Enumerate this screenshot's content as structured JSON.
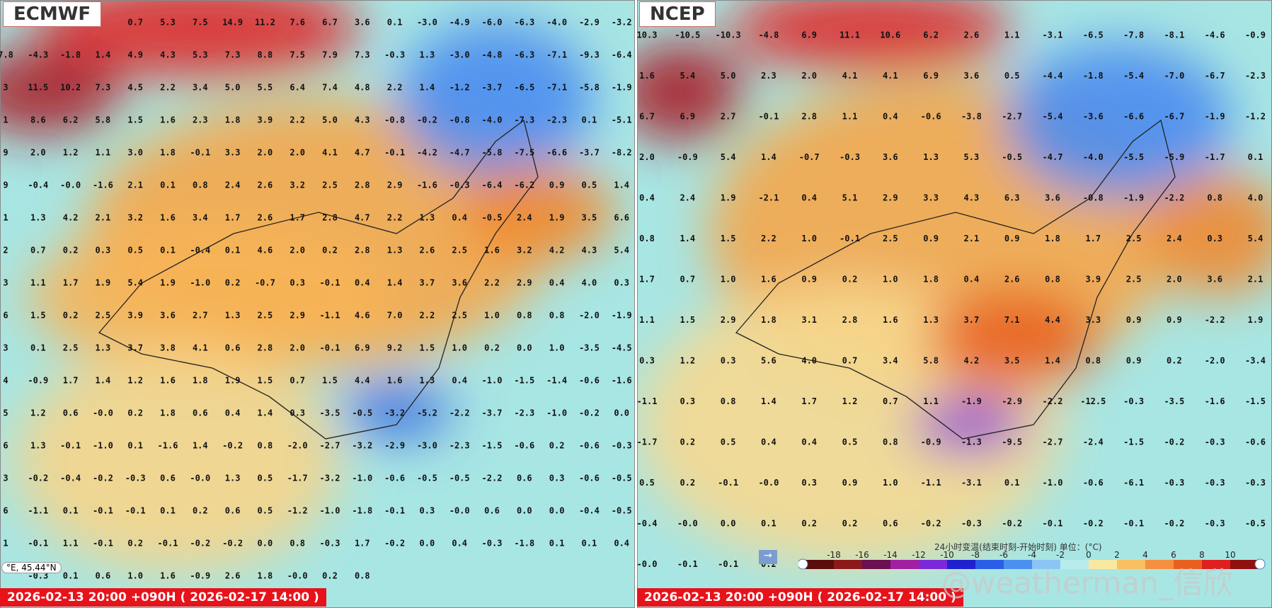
{
  "panels": [
    {
      "title": "ECMWF",
      "footer": "2026-02-13 20:00 +090H ( 2026-02-17 14:00 )",
      "grid": [
        [
          null,
          null,
          null,
          null,
          "0.7",
          "5.3",
          "7.5",
          "14.9",
          "11.2",
          "7.6",
          "6.7",
          "3.6",
          "0.1",
          "-3.0",
          "-4.9",
          "-6.0",
          "-6.3",
          "-4.0",
          "-2.9",
          "-3.2"
        ],
        [
          "7.8",
          "-4.3",
          "-1.8",
          "1.4",
          "4.9",
          "4.3",
          "5.3",
          "7.3",
          "8.8",
          "7.5",
          "7.9",
          "7.3",
          "-0.3",
          "1.3",
          "-3.0",
          "-4.8",
          "-6.3",
          "-7.1",
          "-9.3",
          "-6.4"
        ],
        [
          "3",
          "11.5",
          "10.2",
          "7.3",
          "4.5",
          "2.2",
          "3.4",
          "5.0",
          "5.5",
          "6.4",
          "7.4",
          "4.8",
          "2.2",
          "1.4",
          "-1.2",
          "-3.7",
          "-6.5",
          "-7.1",
          "-5.8",
          "-1.9"
        ],
        [
          "1",
          "8.6",
          "6.2",
          "5.8",
          "1.5",
          "1.6",
          "2.3",
          "1.8",
          "3.9",
          "2.2",
          "5.0",
          "4.3",
          "-0.8",
          "-0.2",
          "-0.8",
          "-4.0",
          "-7.3",
          "-2.3",
          "0.1",
          "-5.1"
        ],
        [
          "9",
          "2.0",
          "1.2",
          "1.1",
          "3.0",
          "1.8",
          "-0.1",
          "3.3",
          "2.0",
          "2.0",
          "4.1",
          "4.7",
          "-0.1",
          "-4.2",
          "-4.7",
          "-5.8",
          "-7.5",
          "-6.6",
          "-3.7",
          "-8.2"
        ],
        [
          "9",
          "-0.4",
          "-0.0",
          "-1.6",
          "2.1",
          "0.1",
          "0.8",
          "2.4",
          "2.6",
          "3.2",
          "2.5",
          "2.8",
          "2.9",
          "-1.6",
          "-0.3",
          "-6.4",
          "-6.2",
          "0.9",
          "0.5",
          "1.4"
        ],
        [
          "1",
          "1.3",
          "4.2",
          "2.1",
          "3.2",
          "1.6",
          "3.4",
          "1.7",
          "2.6",
          "1.7",
          "2.8",
          "4.7",
          "2.2",
          "1.3",
          "0.4",
          "-0.5",
          "2.4",
          "1.9",
          "3.5",
          "6.6"
        ],
        [
          "2",
          "0.7",
          "0.2",
          "0.3",
          "0.5",
          "0.1",
          "-0.4",
          "0.1",
          "4.6",
          "2.0",
          "0.2",
          "2.8",
          "1.3",
          "2.6",
          "2.5",
          "1.6",
          "3.2",
          "4.2",
          "4.3",
          "5.4"
        ],
        [
          "3",
          "1.1",
          "1.7",
          "1.9",
          "5.4",
          "1.9",
          "-1.0",
          "0.2",
          "-0.7",
          "0.3",
          "-0.1",
          "0.4",
          "1.4",
          "3.7",
          "3.6",
          "2.2",
          "2.9",
          "0.4",
          "4.0",
          "0.3"
        ],
        [
          "6",
          "1.5",
          "0.2",
          "2.5",
          "3.9",
          "3.6",
          "2.7",
          "1.3",
          "2.5",
          "2.9",
          "-1.1",
          "4.6",
          "7.0",
          "2.2",
          "2.5",
          "1.0",
          "0.8",
          "0.8",
          "-2.0",
          "-1.9"
        ],
        [
          "3",
          "0.1",
          "2.5",
          "1.3",
          "3.7",
          "3.8",
          "4.1",
          "0.6",
          "2.8",
          "2.0",
          "-0.1",
          "6.9",
          "9.2",
          "1.5",
          "1.0",
          "0.2",
          "0.0",
          "1.0",
          "-3.5",
          "-4.5"
        ],
        [
          "4",
          "-0.9",
          "1.7",
          "1.4",
          "1.2",
          "1.6",
          "1.8",
          "1.9",
          "1.5",
          "0.7",
          "1.5",
          "4.4",
          "1.6",
          "1.3",
          "0.4",
          "-1.0",
          "-1.5",
          "-1.4",
          "-0.6",
          "-1.6"
        ],
        [
          "5",
          "1.2",
          "0.6",
          "-0.0",
          "0.2",
          "1.8",
          "0.6",
          "0.4",
          "1.4",
          "0.3",
          "-3.5",
          "-0.5",
          "-3.2",
          "-5.2",
          "-2.2",
          "-3.7",
          "-2.3",
          "-1.0",
          "-0.2",
          "0.0"
        ],
        [
          "6",
          "1.3",
          "-0.1",
          "-1.0",
          "0.1",
          "-1.6",
          "1.4",
          "-0.2",
          "0.8",
          "-2.0",
          "-2.7",
          "-3.2",
          "-2.9",
          "-3.0",
          "-2.3",
          "-1.5",
          "-0.6",
          "0.2",
          "-0.6",
          "-0.3"
        ],
        [
          "3",
          "-0.2",
          "-0.4",
          "-0.2",
          "-0.3",
          "0.6",
          "-0.0",
          "1.3",
          "0.5",
          "-1.7",
          "-3.2",
          "-1.0",
          "-0.6",
          "-0.5",
          "-0.5",
          "-2.2",
          "0.6",
          "0.3",
          "-0.6",
          "-0.5"
        ],
        [
          "6",
          "-1.1",
          "0.1",
          "-0.1",
          "-0.1",
          "0.1",
          "0.2",
          "0.6",
          "0.5",
          "-1.2",
          "-1.0",
          "-1.8",
          "-0.1",
          "0.3",
          "-0.0",
          "0.6",
          "0.0",
          "0.0",
          "-0.4",
          "-0.5"
        ],
        [
          "1",
          "-0.1",
          "1.1",
          "-0.1",
          "0.2",
          "-0.1",
          "-0.2",
          "-0.2",
          "0.0",
          "0.8",
          "-0.3",
          "1.7",
          "-0.2",
          "0.0",
          "0.4",
          "-0.3",
          "-1.8",
          "0.1",
          "0.1",
          "0.4"
        ],
        [
          null,
          "-0.3",
          "0.1",
          "0.6",
          "1.0",
          "1.6",
          "-0.9",
          "2.6",
          "1.8",
          "-0.0",
          "0.2",
          "0.8",
          null,
          null,
          null,
          null,
          null,
          null,
          null,
          null
        ]
      ]
    },
    {
      "title": "NCEP",
      "footer": "2026-02-13 20:00 +090H ( 2026-02-17 14:00 )",
      "grid": [
        [
          "10.3",
          "-10.5",
          "-10.3",
          "-4.8",
          "6.9",
          "11.1",
          "10.6",
          "6.2",
          "2.6",
          "1.1",
          "-3.1",
          "-6.5",
          "-7.8",
          "-8.1",
          "-4.6",
          "-0.9"
        ],
        [
          "1.6",
          "5.4",
          "5.0",
          "2.3",
          "2.0",
          "4.1",
          "4.1",
          "6.9",
          "3.6",
          "0.5",
          "-4.4",
          "-1.8",
          "-5.4",
          "-7.0",
          "-6.7",
          "-2.3"
        ],
        [
          "6.7",
          "6.9",
          "2.7",
          "-0.1",
          "2.8",
          "1.1",
          "0.4",
          "-0.6",
          "-3.8",
          "-2.7",
          "-5.4",
          "-3.6",
          "-6.6",
          "-6.7",
          "-1.9",
          "-1.2"
        ],
        [
          "2.0",
          "-0.9",
          "5.4",
          "1.4",
          "-0.7",
          "-0.3",
          "3.6",
          "1.3",
          "5.3",
          "-0.5",
          "-4.7",
          "-4.0",
          "-5.5",
          "-5.9",
          "-1.7",
          "0.1"
        ],
        [
          "0.4",
          "2.4",
          "1.9",
          "-2.1",
          "0.4",
          "5.1",
          "2.9",
          "3.3",
          "4.3",
          "6.3",
          "3.6",
          "-0.8",
          "-1.9",
          "-2.2",
          "0.8",
          "4.0"
        ],
        [
          "0.8",
          "1.4",
          "1.5",
          "2.2",
          "1.0",
          "-0.1",
          "2.5",
          "0.9",
          "2.1",
          "0.9",
          "1.8",
          "1.7",
          "2.5",
          "2.4",
          "0.3",
          "5.4"
        ],
        [
          "1.7",
          "0.7",
          "1.0",
          "1.6",
          "0.9",
          "0.2",
          "1.0",
          "1.8",
          "0.4",
          "2.6",
          "0.8",
          "3.9",
          "2.5",
          "2.0",
          "3.6",
          "2.1"
        ],
        [
          "1.1",
          "1.5",
          "2.9",
          "1.8",
          "3.1",
          "2.8",
          "1.6",
          "1.3",
          "3.7",
          "7.1",
          "4.4",
          "3.3",
          "0.9",
          "0.9",
          "-2.2",
          "1.9"
        ],
        [
          "0.3",
          "1.2",
          "0.3",
          "5.6",
          "4.0",
          "0.7",
          "3.4",
          "5.8",
          "4.2",
          "3.5",
          "1.4",
          "0.8",
          "0.9",
          "0.2",
          "-2.0",
          "-3.4"
        ],
        [
          "-1.1",
          "0.3",
          "0.8",
          "1.4",
          "1.7",
          "1.2",
          "0.7",
          "1.1",
          "-1.9",
          "-2.9",
          "-2.2",
          "-12.5",
          "-0.3",
          "-3.5",
          "-1.6",
          "-1.5"
        ],
        [
          "-1.7",
          "0.2",
          "0.5",
          "0.4",
          "0.4",
          "0.5",
          "0.8",
          "-0.9",
          "-1.3",
          "-9.5",
          "-2.7",
          "-2.4",
          "-1.5",
          "-0.2",
          "-0.3",
          "-0.6"
        ],
        [
          "0.5",
          "0.2",
          "-0.1",
          "-0.0",
          "0.3",
          "0.9",
          "1.0",
          "-1.1",
          "-3.1",
          "0.1",
          "-1.0",
          "-0.6",
          "-6.1",
          "-0.3",
          "-0.3",
          "-0.3"
        ],
        [
          "-0.4",
          "-0.0",
          "0.0",
          "0.1",
          "0.2",
          "0.2",
          "0.6",
          "-0.2",
          "-0.3",
          "-0.2",
          "-0.1",
          "-0.2",
          "-0.1",
          "-0.2",
          "-0.3",
          "-0.5"
        ],
        [
          "-0.0",
          "-0.1",
          "-0.1",
          "0.2",
          null,
          null,
          null,
          null,
          null,
          null,
          null,
          null,
          null,
          null,
          null,
          null
        ]
      ]
    }
  ],
  "coordinate": "°E, 45.44°N",
  "legend": {
    "title": "24小时变温(结束时刻-开始时刻) 单位：(°C)",
    "ticks": [
      "-18",
      "-16",
      "-14",
      "-12",
      "-10",
      "-8",
      "-6",
      "-4",
      "-2",
      "0",
      "2",
      "4",
      "6",
      "8",
      "10"
    ],
    "colors": [
      "#5a0d0d",
      "#8b1a1a",
      "#6b1050",
      "#a020a0",
      "#7a28d8",
      "#2020d0",
      "#2a5ee8",
      "#4a90f0",
      "#8cc4f4",
      "#b8ecec",
      "#f8e8a0",
      "#f8c060",
      "#f49040",
      "#e86020",
      "#e02020",
      "#901010"
    ]
  },
  "watermark": "@weatherman_信欣"
}
